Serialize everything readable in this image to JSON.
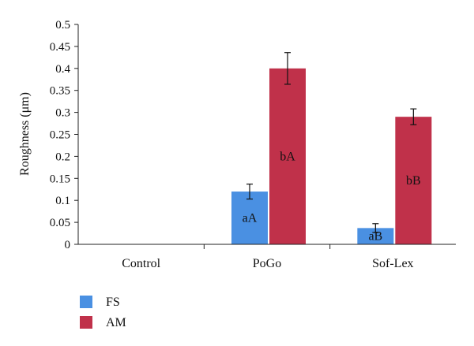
{
  "chart_data": {
    "type": "bar",
    "categories": [
      "Control",
      "PoGo",
      "Sof-Lex"
    ],
    "ylabel": "Roughness (μm)",
    "ylim": [
      0,
      0.5
    ],
    "yticks": [
      "0",
      "0.05",
      "0.1",
      "0.15",
      "0.2",
      "0.25",
      "0.3",
      "0.35",
      "0.4",
      "0.45",
      "0.5"
    ],
    "grid": false,
    "legend_position": "bottom-left",
    "series": [
      {
        "name": "FS",
        "color": "#4a90e2",
        "values": [
          null,
          0.12,
          0.037
        ],
        "errors": [
          null,
          0.017,
          0.01
        ],
        "labels": [
          null,
          "aA",
          "aB"
        ]
      },
      {
        "name": "AM",
        "color": "#c0314a",
        "values": [
          null,
          0.4,
          0.29
        ],
        "errors": [
          null,
          0.036,
          0.018
        ],
        "labels": [
          null,
          "bA",
          "bB"
        ]
      }
    ]
  }
}
